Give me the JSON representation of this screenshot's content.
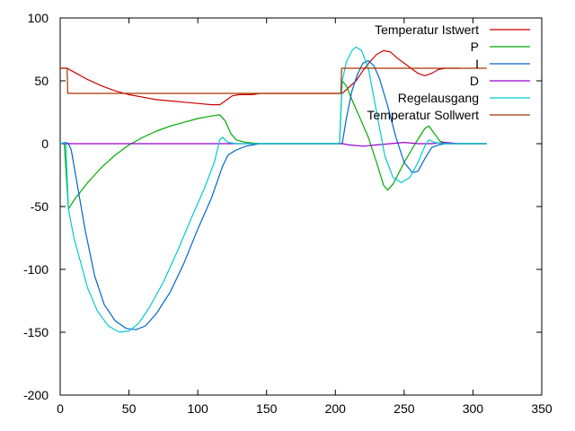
{
  "chart_data": {
    "type": "line",
    "title": "",
    "xlabel": "",
    "ylabel": "",
    "xlim": [
      0,
      350
    ],
    "ylim": [
      -200,
      100
    ],
    "xticks": [
      0,
      50,
      100,
      150,
      200,
      250,
      300,
      350
    ],
    "yticks": [
      -200,
      -150,
      -100,
      -50,
      0,
      50,
      100
    ],
    "xtick_labels": [
      "0",
      "50",
      "100",
      "150",
      "200",
      "250",
      "300",
      "350"
    ],
    "ytick_labels": [
      "-200",
      "-150",
      "-100",
      "-50",
      "0",
      "50",
      "100"
    ],
    "grid": false,
    "legend_position": "top-right",
    "series": [
      {
        "name": "Temperatur Istwert",
        "color": "#cc0000",
        "points": [
          [
            0,
            60
          ],
          [
            5,
            60
          ],
          [
            10,
            57
          ],
          [
            20,
            51
          ],
          [
            30,
            46
          ],
          [
            40,
            42
          ],
          [
            50,
            39
          ],
          [
            60,
            37
          ],
          [
            70,
            35
          ],
          [
            80,
            34
          ],
          [
            90,
            33
          ],
          [
            100,
            32
          ],
          [
            110,
            31
          ],
          [
            116,
            31
          ],
          [
            120,
            34
          ],
          [
            125,
            38
          ],
          [
            130,
            39
          ],
          [
            140,
            39
          ],
          [
            145,
            40
          ],
          [
            150,
            40
          ],
          [
            200,
            40
          ],
          [
            205,
            40
          ],
          [
            210,
            45
          ],
          [
            215,
            50
          ],
          [
            220,
            58
          ],
          [
            225,
            65
          ],
          [
            230,
            71
          ],
          [
            235,
            74
          ],
          [
            240,
            73
          ],
          [
            245,
            68
          ],
          [
            250,
            64
          ],
          [
            255,
            60
          ],
          [
            260,
            56
          ],
          [
            265,
            54
          ],
          [
            270,
            56
          ],
          [
            275,
            59
          ],
          [
            280,
            60
          ],
          [
            290,
            60
          ]
        ]
      },
      {
        "name": "P",
        "color": "#00aa00",
        "points": [
          [
            0,
            0
          ],
          [
            3,
            0
          ],
          [
            6,
            -52
          ],
          [
            10,
            -45
          ],
          [
            20,
            -31
          ],
          [
            30,
            -19
          ],
          [
            40,
            -9
          ],
          [
            50,
            -1
          ],
          [
            60,
            5
          ],
          [
            70,
            10
          ],
          [
            80,
            14
          ],
          [
            90,
            17
          ],
          [
            100,
            20
          ],
          [
            110,
            22
          ],
          [
            116,
            23
          ],
          [
            120,
            18
          ],
          [
            124,
            8
          ],
          [
            128,
            3
          ],
          [
            135,
            1
          ],
          [
            145,
            0
          ],
          [
            150,
            0
          ],
          [
            203,
            0
          ],
          [
            205,
            50
          ],
          [
            208,
            46
          ],
          [
            212,
            35
          ],
          [
            218,
            20
          ],
          [
            224,
            5
          ],
          [
            230,
            -15
          ],
          [
            235,
            -33
          ],
          [
            238,
            -37
          ],
          [
            242,
            -32
          ],
          [
            250,
            -15
          ],
          [
            258,
            0
          ],
          [
            265,
            12
          ],
          [
            268,
            14
          ],
          [
            272,
            8
          ],
          [
            276,
            2
          ],
          [
            282,
            0
          ],
          [
            310,
            0
          ]
        ]
      },
      {
        "name": "I",
        "color": "#0066cc",
        "points": [
          [
            0,
            0
          ],
          [
            4,
            1
          ],
          [
            6,
            0
          ],
          [
            8,
            -5
          ],
          [
            12,
            -30
          ],
          [
            18,
            -68
          ],
          [
            25,
            -105
          ],
          [
            32,
            -128
          ],
          [
            40,
            -141
          ],
          [
            48,
            -147
          ],
          [
            55,
            -148
          ],
          [
            62,
            -145
          ],
          [
            70,
            -135
          ],
          [
            80,
            -118
          ],
          [
            90,
            -95
          ],
          [
            100,
            -68
          ],
          [
            110,
            -43
          ],
          [
            118,
            -18
          ],
          [
            122,
            -9
          ],
          [
            128,
            -5
          ],
          [
            135,
            -2
          ],
          [
            140,
            -1
          ],
          [
            145,
            0
          ],
          [
            150,
            0
          ],
          [
            203,
            0
          ],
          [
            205,
            0
          ],
          [
            208,
            20
          ],
          [
            212,
            42
          ],
          [
            216,
            55
          ],
          [
            220,
            64
          ],
          [
            224,
            66
          ],
          [
            228,
            62
          ],
          [
            232,
            52
          ],
          [
            238,
            30
          ],
          [
            244,
            5
          ],
          [
            250,
            -15
          ],
          [
            256,
            -23
          ],
          [
            260,
            -22
          ],
          [
            265,
            -12
          ],
          [
            270,
            -3
          ],
          [
            275,
            -1
          ],
          [
            280,
            0
          ],
          [
            310,
            0
          ]
        ]
      },
      {
        "name": "D",
        "color": "#9900cc",
        "points": [
          [
            0,
            0
          ],
          [
            50,
            0
          ],
          [
            100,
            0
          ],
          [
            150,
            0
          ],
          [
            205,
            0
          ],
          [
            210,
            -1
          ],
          [
            220,
            -2
          ],
          [
            230,
            -1
          ],
          [
            240,
            0
          ],
          [
            250,
            1
          ],
          [
            260,
            0
          ],
          [
            270,
            0
          ],
          [
            280,
            1
          ],
          [
            290,
            0
          ],
          [
            310,
            0
          ]
        ]
      },
      {
        "name": "Regelausgang",
        "color": "#00cccc",
        "points": [
          [
            0,
            0
          ],
          [
            4,
            1
          ],
          [
            6,
            -52
          ],
          [
            10,
            -75
          ],
          [
            15,
            -95
          ],
          [
            20,
            -115
          ],
          [
            27,
            -133
          ],
          [
            35,
            -145
          ],
          [
            43,
            -150
          ],
          [
            50,
            -149
          ],
          [
            57,
            -143
          ],
          [
            65,
            -130
          ],
          [
            75,
            -110
          ],
          [
            85,
            -86
          ],
          [
            95,
            -60
          ],
          [
            105,
            -35
          ],
          [
            112,
            -15
          ],
          [
            116,
            3
          ],
          [
            118,
            5
          ],
          [
            122,
            1
          ],
          [
            128,
            0
          ],
          [
            140,
            0
          ],
          [
            150,
            0
          ],
          [
            203,
            0
          ],
          [
            205,
            50
          ],
          [
            208,
            65
          ],
          [
            212,
            74
          ],
          [
            215,
            77
          ],
          [
            219,
            74
          ],
          [
            224,
            60
          ],
          [
            230,
            25
          ],
          [
            236,
            -10
          ],
          [
            242,
            -27
          ],
          [
            248,
            -31
          ],
          [
            254,
            -27
          ],
          [
            260,
            -15
          ],
          [
            265,
            -2
          ],
          [
            268,
            3
          ],
          [
            272,
            1
          ],
          [
            278,
            0
          ],
          [
            310,
            0
          ]
        ]
      },
      {
        "name": "Temperatur Sollwert",
        "color": "#aa3300",
        "points": [
          [
            0,
            60
          ],
          [
            5,
            60
          ],
          [
            5.5,
            40
          ],
          [
            100,
            40
          ],
          [
            150,
            40
          ],
          [
            204,
            40
          ],
          [
            204.5,
            60
          ],
          [
            250,
            60
          ],
          [
            310,
            60
          ]
        ]
      }
    ]
  }
}
